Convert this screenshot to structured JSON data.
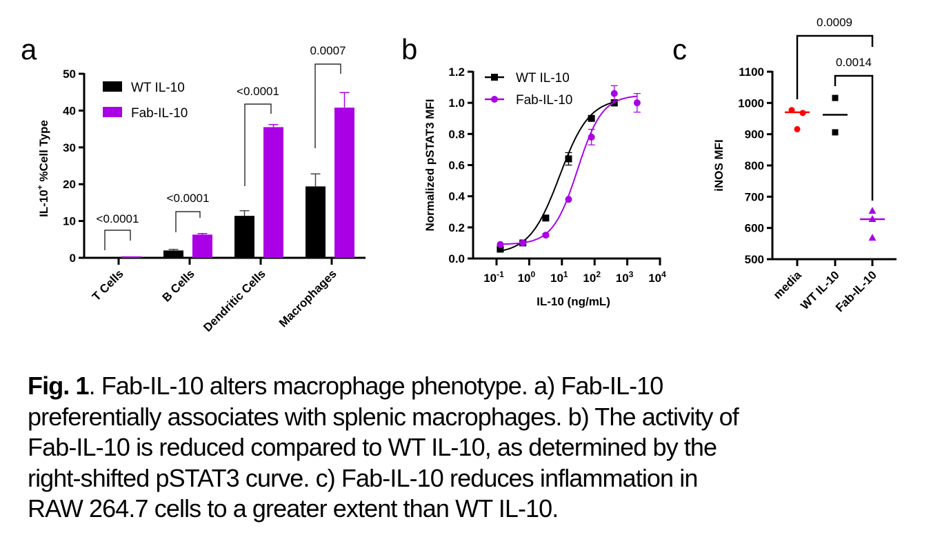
{
  "chart_data": [
    {
      "panel": "a",
      "type": "bar",
      "ylabel": "IL-10⁺ %Cell Type",
      "xlabel": "",
      "ylim": [
        0,
        50
      ],
      "yticks": [
        0,
        10,
        20,
        30,
        40,
        50
      ],
      "categories": [
        "T Cells",
        "B Cells",
        "Dendritic Cells",
        "Macrophages"
      ],
      "series": [
        {
          "name": "WT IL-10",
          "color": "#000000",
          "values": [
            0.0,
            2.0,
            11.4,
            19.4
          ],
          "errors": [
            0.0,
            0.3,
            1.4,
            3.4
          ]
        },
        {
          "name": "Fab-IL-10",
          "color": "#aa00e6",
          "values": [
            0.4,
            6.3,
            35.5,
            40.8
          ],
          "errors": [
            0.0,
            0.3,
            0.7,
            4.1
          ]
        }
      ],
      "significance": [
        {
          "category": "T Cells",
          "label": "<0.0001"
        },
        {
          "category": "B Cells",
          "label": "<0.0001"
        },
        {
          "category": "Dendritic Cells",
          "label": "<0.0001"
        },
        {
          "category": "Macrophages",
          "label": "0.0007"
        }
      ],
      "legend": "top-left"
    },
    {
      "panel": "b",
      "type": "line",
      "xscale": "log",
      "xlabel": "IL-10 (ng/mL)",
      "ylabel": "Normalized pSTAT3 MFI",
      "xlim": [
        0.1,
        10000
      ],
      "ylim": [
        0,
        1.2
      ],
      "xticks": [
        {
          "base": "10",
          "exp": "-1",
          "value": 0.1
        },
        {
          "base": "10",
          "exp": "0",
          "value": 1
        },
        {
          "base": "10",
          "exp": "1",
          "value": 10
        },
        {
          "base": "10",
          "exp": "2",
          "value": 100
        },
        {
          "base": "10",
          "exp": "3",
          "value": 1000
        },
        {
          "base": "10",
          "exp": "4",
          "value": 10000
        }
      ],
      "yticks": [
        "0.0",
        "0.2",
        "0.4",
        "0.6",
        "0.8",
        "1.0",
        "1.2"
      ],
      "series": [
        {
          "name": "WT IL-10",
          "color": "#000000",
          "marker": "square",
          "x": [
            0.13,
            0.64,
            3.2,
            16,
            80,
            400
          ],
          "y": [
            0.06,
            0.1,
            0.26,
            0.64,
            0.9,
            1.0
          ],
          "errors": [
            0.01,
            0.01,
            0.01,
            0.04,
            0.01,
            0.02
          ],
          "fit": {
            "bottom": 0.03,
            "top": 1.03,
            "ec50": 8.5,
            "hill": 0.95
          }
        },
        {
          "name": "Fab-IL-10",
          "color": "#aa00e6",
          "marker": "circle",
          "x": [
            0.13,
            0.64,
            3.2,
            16,
            80,
            400,
            2000
          ],
          "y": [
            0.09,
            0.1,
            0.15,
            0.38,
            0.78,
            1.06,
            1.0
          ],
          "errors": [
            0.0,
            0.0,
            0.01,
            0.0,
            0.05,
            0.05,
            0.06
          ],
          "fit": {
            "bottom": 0.09,
            "top": 1.05,
            "ec50": 30,
            "hill": 1.15
          }
        }
      ],
      "legend": "top-left"
    },
    {
      "panel": "c",
      "type": "scatter",
      "ylabel": "iNOS MFI",
      "ylim": [
        500,
        1100
      ],
      "yticks": [
        500,
        600,
        700,
        800,
        900,
        1000,
        1100
      ],
      "categories": [
        "media",
        "WT IL-10",
        "Fab-IL-10"
      ],
      "series": [
        {
          "name": "media",
          "color": "#ff0000",
          "marker": "circle",
          "values": [
            977,
            968,
            916
          ],
          "jitter": [
            -1,
            1,
            0
          ],
          "mean": 970
        },
        {
          "name": "WT IL-10",
          "color": "#000000",
          "marker": "square",
          "values": [
            1016,
            906
          ],
          "jitter": [
            0,
            0
          ],
          "mean": 962
        },
        {
          "name": "Fab-IL-10",
          "color": "#aa00e6",
          "marker": "triangle",
          "values": [
            654,
            628,
            568
          ],
          "jitter": [
            0,
            0,
            0
          ],
          "mean": 628
        }
      ],
      "significance": [
        {
          "from": "media",
          "to": "Fab-IL-10",
          "label": "0.0009"
        },
        {
          "from": "WT IL-10",
          "to": "Fab-IL-10",
          "label": "0.0014"
        }
      ]
    }
  ],
  "panels": {
    "a": "a",
    "b": "b",
    "c": "c"
  },
  "caption": {
    "bold": "Fig. 1",
    "text": ". Fab-IL-10 alters macrophage phenotype. a) Fab-IL-10 preferentially associates with splenic macrophages. b) The activity of Fab-IL-10 is reduced compared to WT IL-10, as determined by the right-shifted pSTAT3 curve. c) Fab-IL-10 reduces inflammation in RAW 264.7 cells to a greater extent than WT IL-10.",
    "lines": [
      "Fab-IL-10 alters macrophage phenotype. a) Fab-IL-10",
      "preferentially associates with splenic macrophages. b) The activity of",
      "Fab-IL-10 is reduced compared to WT IL-10, as determined by the",
      "right-shifted pSTAT3 curve. c) Fab-IL-10 reduces inflammation in",
      "RAW 264.7 cells to a greater extent than WT IL-10."
    ]
  }
}
